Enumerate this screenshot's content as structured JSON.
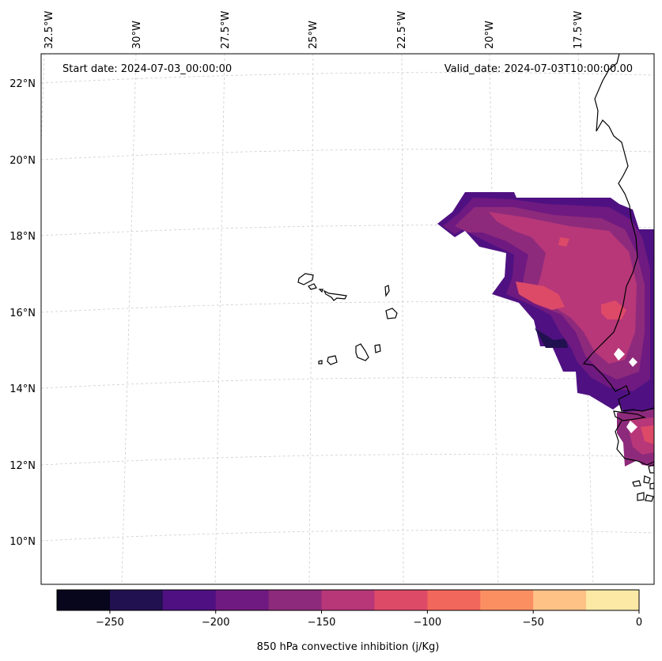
{
  "map": {
    "start_date_text": "Start date: 2024-07-03_00:00:00",
    "valid_date_text": "Valid_date: 2024-07-03T10:00:00.00",
    "lon_labels": [
      "32.5°W",
      "30°W",
      "27.5°W",
      "25°W",
      "22.5°W",
      "20°W",
      "17.5°W"
    ],
    "lat_labels": [
      "22°N",
      "20°N",
      "18°N",
      "16°N",
      "14°N",
      "12°N",
      "10°N"
    ],
    "field_palette": {
      "dark": "#4f1182",
      "purple": "#6f1a80",
      "magenta": "#8e2a7c",
      "rose": "#b73779",
      "pink": "#dd4a68",
      "deep": "#221150"
    },
    "coastline_color": "#000000",
    "gridline_color": "#cccccc"
  },
  "colorbar": {
    "label": "850 hPa convective inhibition (j/Kg)",
    "tick_labels": [
      "−250",
      "−200",
      "−150",
      "−100",
      "−50",
      "0"
    ],
    "levels": [
      -275,
      -250,
      -225,
      -200,
      -175,
      -150,
      -125,
      -100,
      -75,
      -50,
      -25,
      0
    ],
    "colors": [
      "#07061c",
      "#221150",
      "#4f1182",
      "#6f1a80",
      "#8e2a7c",
      "#b73779",
      "#dd4a68",
      "#f2675c",
      "#fc8f62",
      "#fec287",
      "#fde9a6"
    ]
  }
}
